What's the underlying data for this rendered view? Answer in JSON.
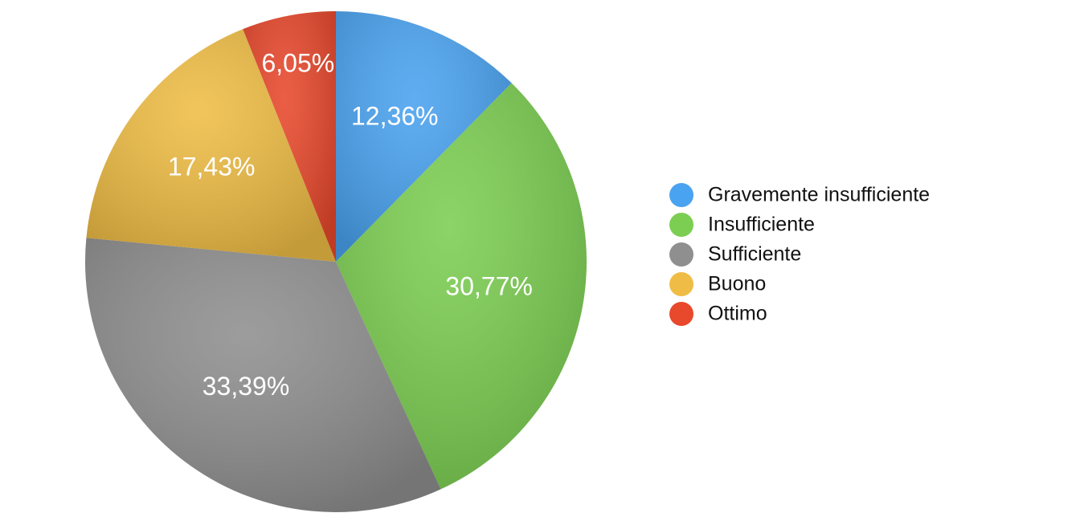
{
  "chart_data": {
    "type": "pie",
    "categories": [
      "Gravemente insufficiente",
      "Insufficiente",
      "Sufficiente",
      "Buono",
      "Ottimo"
    ],
    "values": [
      12.36,
      30.77,
      33.39,
      17.43,
      6.05
    ],
    "value_labels": [
      "12,36%",
      "30,77%",
      "33,39%",
      "17,43%",
      "6,05%"
    ],
    "colors": [
      "#4aa3f0",
      "#7cce52",
      "#8f8f8f",
      "#efbd45",
      "#e8482c"
    ],
    "legend": "right"
  }
}
